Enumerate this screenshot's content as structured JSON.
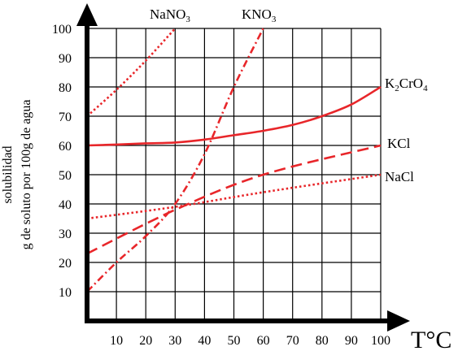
{
  "chart_data": {
    "type": "line",
    "xlabel": "T°C",
    "ylabel_line1": "solubilidad",
    "ylabel_line2": "g de soluto por 100g de agua",
    "xlim": [
      0,
      100
    ],
    "ylim": [
      0,
      100
    ],
    "x_ticks": [
      10,
      20,
      30,
      40,
      50,
      60,
      70,
      80,
      90,
      100
    ],
    "y_ticks": [
      10,
      20,
      30,
      40,
      50,
      60,
      70,
      80,
      90,
      100
    ],
    "grid": true,
    "colors": {
      "series": "#e8262a",
      "axis": "#000000",
      "grid": "#000000"
    },
    "series": [
      {
        "name": "NaNO3",
        "style": "dotted",
        "x": [
          0,
          10,
          20,
          30
        ],
        "y": [
          70,
          79,
          89,
          100
        ]
      },
      {
        "name": "KNO3",
        "style": "dash-dot",
        "x": [
          0,
          10,
          20,
          30,
          40,
          50,
          60
        ],
        "y": [
          10,
          20,
          29,
          40,
          57,
          80,
          100
        ]
      },
      {
        "name": "K2CrO4",
        "style": "solid",
        "x": [
          0,
          10,
          20,
          30,
          40,
          50,
          60,
          70,
          80,
          90,
          100
        ],
        "y": [
          60,
          60.3,
          60.7,
          61,
          62,
          63.5,
          65,
          67,
          70,
          74,
          80
        ]
      },
      {
        "name": "KCl",
        "style": "dashed",
        "x": [
          0,
          30,
          60,
          100
        ],
        "y": [
          23,
          38,
          50,
          60
        ]
      },
      {
        "name": "NaCl",
        "style": "dotted",
        "x": [
          0,
          30,
          60,
          100
        ],
        "y": [
          35,
          39,
          44,
          50
        ]
      }
    ]
  }
}
